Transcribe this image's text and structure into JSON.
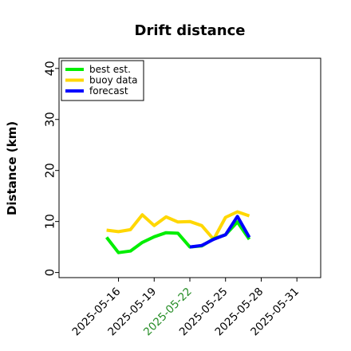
{
  "chart_data": {
    "type": "line",
    "title": "Drift distance",
    "xlabel": "",
    "ylabel": "Distance (km)",
    "x_axis": {
      "type": "date",
      "range": [
        "2025-05-11",
        "2025-06-02"
      ],
      "ticks": [
        {
          "label": "2025-05-16",
          "date": "2025-05-16",
          "color": "#000000"
        },
        {
          "label": "2025-05-19",
          "date": "2025-05-19",
          "color": "#000000"
        },
        {
          "label": "2025-05-22",
          "date": "2025-05-22",
          "color": "#228b22"
        },
        {
          "label": "2025-05-25",
          "date": "2025-05-25",
          "color": "#000000"
        },
        {
          "label": "2025-05-28",
          "date": "2025-05-28",
          "color": "#000000"
        },
        {
          "label": "2025-05-31",
          "date": "2025-05-31",
          "color": "#000000"
        }
      ]
    },
    "y_axis": {
      "range": [
        -1,
        42
      ],
      "ticks": [
        0,
        10,
        20,
        30,
        40
      ]
    },
    "grid": false,
    "legend": {
      "placement": "top-left"
    },
    "series": [
      {
        "name": "buoy data",
        "color": "#ffd700",
        "points": [
          {
            "x": "2025-05-15",
            "y": 8.3
          },
          {
            "x": "2025-05-16",
            "y": 8.0
          },
          {
            "x": "2025-05-17",
            "y": 8.4
          },
          {
            "x": "2025-05-18",
            "y": 11.3
          },
          {
            "x": "2025-05-19",
            "y": 9.2
          },
          {
            "x": "2025-05-20",
            "y": 10.9
          },
          {
            "x": "2025-05-21",
            "y": 9.9
          },
          {
            "x": "2025-05-22",
            "y": 10.0
          },
          {
            "x": "2025-05-23",
            "y": 9.2
          },
          {
            "x": "2025-05-24",
            "y": 6.5
          },
          {
            "x": "2025-05-25",
            "y": 10.8
          },
          {
            "x": "2025-05-26",
            "y": 11.9
          },
          {
            "x": "2025-05-27",
            "y": 11.1
          }
        ]
      },
      {
        "name": "best est.",
        "color": "#00ee00",
        "points": [
          {
            "x": "2025-05-15",
            "y": 6.9
          },
          {
            "x": "2025-05-16",
            "y": 3.9
          },
          {
            "x": "2025-05-17",
            "y": 4.2
          },
          {
            "x": "2025-05-18",
            "y": 5.9
          },
          {
            "x": "2025-05-19",
            "y": 7.0
          },
          {
            "x": "2025-05-20",
            "y": 7.8
          },
          {
            "x": "2025-05-21",
            "y": 7.7
          },
          {
            "x": "2025-05-22",
            "y": 5.0
          },
          {
            "x": "2025-05-23",
            "y": 5.2
          },
          {
            "x": "2025-05-24",
            "y": 6.6
          },
          {
            "x": "2025-05-25",
            "y": 7.4
          },
          {
            "x": "2025-05-26",
            "y": 9.9
          },
          {
            "x": "2025-05-27",
            "y": 6.5
          }
        ]
      },
      {
        "name": "forecast",
        "color": "#0000ff",
        "points": [
          {
            "x": "2025-05-22",
            "y": 5.0
          },
          {
            "x": "2025-05-23",
            "y": 5.3
          },
          {
            "x": "2025-05-24",
            "y": 6.5
          },
          {
            "x": "2025-05-25",
            "y": 7.4
          },
          {
            "x": "2025-05-26",
            "y": 11.0
          },
          {
            "x": "2025-05-27",
            "y": 6.9
          }
        ]
      }
    ],
    "legend_order": [
      "best est.",
      "buoy data",
      "forecast"
    ]
  }
}
